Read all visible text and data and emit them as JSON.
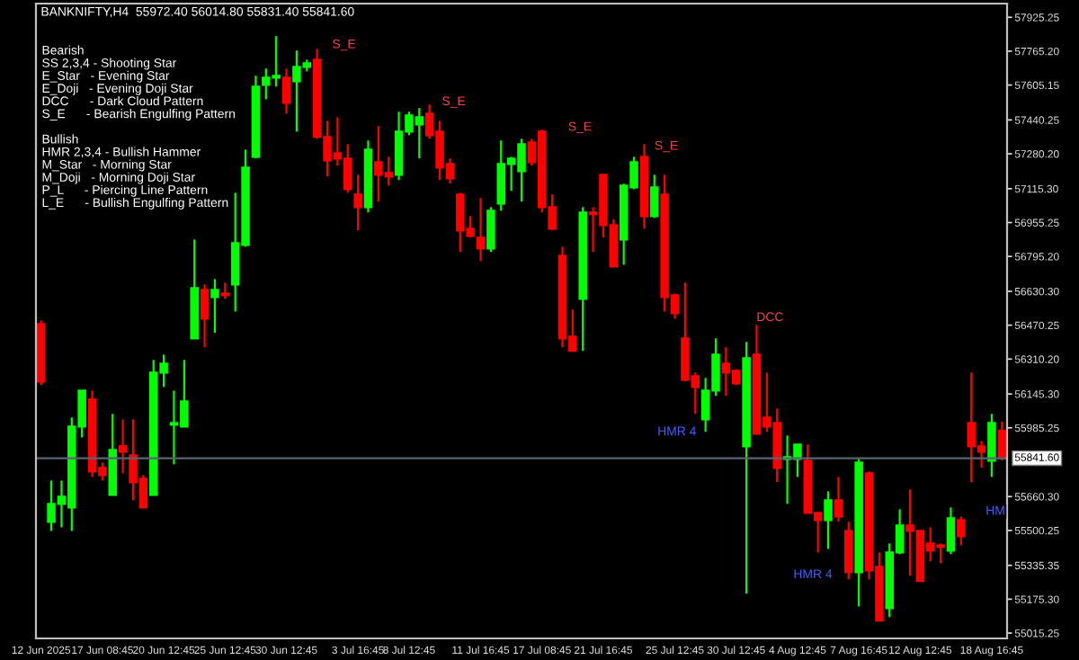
{
  "chart_data": {
    "type": "candlestick",
    "title": "BANKNIFTY,H4  55972.40 56014.80 55831.40 55841.60",
    "categories": [
      "12 Jun 2025",
      null,
      null,
      null,
      null,
      null,
      "17 Jun 08:45",
      null,
      null,
      null,
      null,
      null,
      "20 Jun 12:45",
      null,
      null,
      null,
      null,
      null,
      "25 Jun 12:45",
      null,
      null,
      null,
      null,
      null,
      "30 Jun 12:45",
      null,
      null,
      null,
      null,
      null,
      null,
      "3 Jul 16:45",
      null,
      null,
      null,
      null,
      "8 Jul 12:45",
      null,
      null,
      null,
      null,
      null,
      null,
      "11 Jul 16:45",
      null,
      null,
      null,
      null,
      null,
      "17 Jul 08:45",
      null,
      null,
      null,
      null,
      null,
      "21 Jul 16:45",
      null,
      null,
      null,
      null,
      null,
      null,
      "25 Jul 12:45",
      null,
      null,
      null,
      null,
      null,
      "30 Jul 12:45",
      null,
      null,
      null,
      null,
      null,
      "4 Aug 12:45",
      null,
      null,
      null,
      null,
      null,
      "7 Aug 16:45",
      null,
      null,
      null,
      null,
      null,
      "12 Aug 12:45",
      null,
      null,
      null,
      null,
      null,
      null,
      "18 Aug 16:45",
      null
    ],
    "ohlc": [
      [
        56476,
        56493,
        56187,
        56204
      ],
      [
        55541,
        55736,
        55498,
        55626
      ],
      [
        55626,
        55736,
        55515,
        55660
      ],
      [
        55609,
        56034,
        55498,
        55991
      ],
      [
        55991,
        56161,
        55940,
        56161
      ],
      [
        56119,
        56161,
        55753,
        55779
      ],
      [
        55796,
        55821,
        55736,
        55762
      ],
      [
        55668,
        56051,
        55668,
        55881
      ],
      [
        55898,
        56025,
        55770,
        55872
      ],
      [
        55855,
        56025,
        55643,
        55728
      ],
      [
        55745,
        55762,
        55609,
        55609
      ],
      [
        55668,
        56306,
        55668,
        56246
      ],
      [
        56246,
        56331,
        56178,
        56289
      ],
      [
        56000,
        56161,
        55813,
        56008
      ],
      [
        55991,
        56306,
        55991,
        56110
      ],
      [
        56408,
        56875,
        56408,
        56646
      ],
      [
        56637,
        56663,
        56366,
        56501
      ],
      [
        56603,
        56688,
        56434,
        56637
      ],
      [
        56620,
        56671,
        56595,
        56612
      ],
      [
        56663,
        57096,
        56535,
        56858
      ],
      [
        56850,
        57300,
        56841,
        57215
      ],
      [
        57266,
        57649,
        57258,
        57598
      ],
      [
        57606,
        57683,
        57538,
        57640
      ],
      [
        57640,
        57836,
        57598,
        57649
      ],
      [
        57640,
        57683,
        57470,
        57521
      ],
      [
        57623,
        57768,
        57385,
        57691
      ],
      [
        57691,
        57725,
        57670,
        57708
      ],
      [
        57725,
        57776,
        57351,
        57360
      ],
      [
        57360,
        57436,
        57173,
        57249
      ],
      [
        57283,
        57453,
        57224,
        57258
      ],
      [
        57258,
        57326,
        57096,
        57113
      ],
      [
        57088,
        57181,
        56918,
        57028
      ],
      [
        57028,
        57343,
        57003,
        57300
      ],
      [
        57241,
        57411,
        57054,
        57181
      ],
      [
        57190,
        57266,
        57130,
        57173
      ],
      [
        57181,
        57479,
        57156,
        57385
      ],
      [
        57385,
        57479,
        57368,
        57462
      ],
      [
        57419,
        57496,
        57258,
        57453
      ],
      [
        57470,
        57513,
        57351,
        57368
      ],
      [
        57385,
        57436,
        57156,
        57215
      ],
      [
        57232,
        57258,
        57139,
        57164
      ],
      [
        57088,
        57096,
        56816,
        56918
      ],
      [
        56926,
        56986,
        56884,
        56892
      ],
      [
        56884,
        57071,
        56773,
        56833
      ],
      [
        56833,
        57028,
        56816,
        57011
      ],
      [
        57045,
        57343,
        57011,
        57232
      ],
      [
        57232,
        57266,
        57105,
        57258
      ],
      [
        57198,
        57351,
        57054,
        57326
      ],
      [
        57334,
        57351,
        57224,
        57241
      ],
      [
        57385,
        57394,
        57003,
        57028
      ],
      [
        57028,
        57088,
        56918,
        56926
      ],
      [
        56799,
        56841,
        56366,
        56408
      ],
      [
        56416,
        56544,
        56349,
        56349
      ],
      [
        56595,
        57028,
        56349,
        57003
      ],
      [
        57003,
        57028,
        56816,
        56995
      ],
      [
        57181,
        57181,
        56884,
        56943
      ],
      [
        56943,
        56970,
        56748,
        56748
      ],
      [
        56875,
        57139,
        56756,
        57130
      ],
      [
        57122,
        57266,
        57113,
        57241
      ],
      [
        57266,
        57326,
        56926,
        56986
      ],
      [
        56986,
        57181,
        56977,
        57122
      ],
      [
        57088,
        57181,
        56535,
        56603
      ],
      [
        56612,
        56620,
        56501,
        56527
      ],
      [
        56408,
        56671,
        56204,
        56212
      ],
      [
        56229,
        56246,
        56051,
        56178
      ],
      [
        56025,
        56221,
        55966,
        56161
      ],
      [
        56161,
        56408,
        56136,
        56331
      ],
      [
        56289,
        56366,
        56136,
        56246
      ],
      [
        56255,
        56263,
        56187,
        56195
      ],
      [
        55898,
        56391,
        55201,
        56314
      ],
      [
        56331,
        56476,
        55957,
        55957
      ],
      [
        56034,
        56246,
        55966,
        55991
      ],
      [
        56008,
        56076,
        55728,
        55796
      ],
      [
        55838,
        55949,
        55626,
        55847
      ],
      [
        55838,
        55906,
        55753,
        55906
      ],
      [
        55830,
        55906,
        55583,
        55583
      ],
      [
        55583,
        55583,
        55396,
        55549
      ],
      [
        55549,
        55685,
        55413,
        55643
      ],
      [
        55643,
        55753,
        55541,
        55566
      ],
      [
        55498,
        55541,
        55269,
        55303
      ],
      [
        55303,
        55838,
        55141,
        55821
      ],
      [
        55770,
        55779,
        55269,
        55311
      ],
      [
        55328,
        55396,
        55074,
        55074
      ],
      [
        55133,
        55439,
        55091,
        55396
      ],
      [
        55396,
        55600,
        55388,
        55524
      ],
      [
        55524,
        55694,
        55286,
        55498
      ],
      [
        55498,
        55498,
        55261,
        55261
      ],
      [
        55439,
        55515,
        55354,
        55405
      ],
      [
        55430,
        55439,
        55345,
        55422
      ],
      [
        55405,
        55609,
        55388,
        55558
      ],
      [
        55549,
        55566,
        55430,
        55473
      ],
      [
        56008,
        56246,
        55728,
        55898
      ],
      [
        55898,
        55923,
        55796,
        55872
      ],
      [
        55830,
        56051,
        55753,
        56008
      ],
      [
        55972.4,
        56014.8,
        55831.4,
        55841.6
      ]
    ],
    "ylim": [
      54990,
      57990
    ],
    "yticks": [
      {
        "value": 57925.25,
        "label": "57925.25"
      },
      {
        "value": 57765.2,
        "label": "57765.20"
      },
      {
        "value": 57605.15,
        "label": "57605.15"
      },
      {
        "value": 57440.25,
        "label": "57440.25"
      },
      {
        "value": 57280.2,
        "label": "57280.20"
      },
      {
        "value": 57115.3,
        "label": "57115.30"
      },
      {
        "value": 56955.25,
        "label": "56955.25"
      },
      {
        "value": 56795.2,
        "label": "56795.20"
      },
      {
        "value": 56630.3,
        "label": "56630.30"
      },
      {
        "value": 56470.25,
        "label": "56470.25"
      },
      {
        "value": 56310.2,
        "label": "56310.20"
      },
      {
        "value": 56145.3,
        "label": "56145.30"
      },
      {
        "value": 55985.25,
        "label": "55985.25"
      },
      {
        "value": 55660.3,
        "label": "55660.30"
      },
      {
        "value": 55500.25,
        "label": "55500.25"
      },
      {
        "value": 55335.35,
        "label": "55335.35"
      },
      {
        "value": 55175.3,
        "label": "55175.30"
      },
      {
        "value": 55015.25,
        "label": "55015.25"
      }
    ],
    "ref_lines": [
      {
        "axis": "y",
        "value": 55841.6,
        "label": "55841.60",
        "color": "#5a6470"
      }
    ],
    "grid": false,
    "annotations": [
      "Bearish",
      "SS 2,3,4 - Shooting Star",
      "E_Star   - Evening Star",
      "E_Doji   - Evening Doji Star",
      "DCC      - Dark Cloud Pattern",
      "S_E      - Bearish Engulfing Pattern",
      "Bullish",
      "HMR 2,3,4 - Bullish Hammer",
      "M_Star   - Morning Star",
      "M_Doji   - Morning Doji Star",
      "P_L      - Piercing Line Pattern",
      "L_E      - Bullish Engulfing Pattern",
      "S_E",
      "S_E",
      "S_E",
      "S_E",
      "HMR 4",
      "DCC",
      "HMR 4",
      "HM"
    ]
  }
}
